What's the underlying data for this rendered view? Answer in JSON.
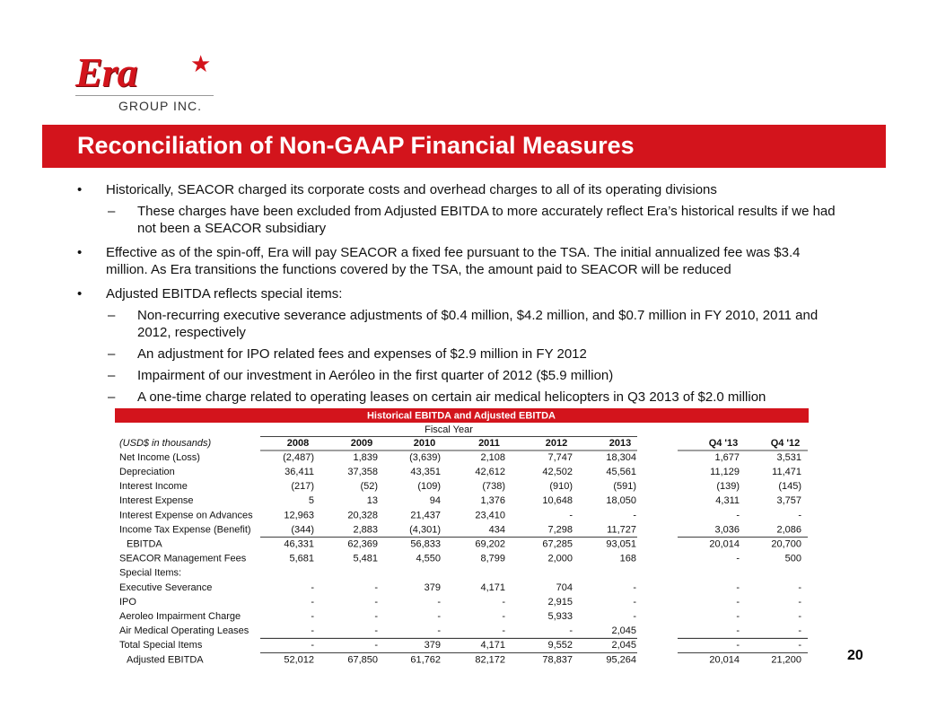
{
  "logo": {
    "name": "Era",
    "sub": "GROUP INC."
  },
  "title": "Reconciliation of Non-GAAP Financial Measures",
  "bullets": [
    {
      "text": "Historically, SEACOR charged its corporate costs and overhead charges to all of its operating divisions",
      "subs": [
        "These charges have been excluded from Adjusted EBITDA to more accurately reflect Era’s historical results if we had not been a SEACOR subsidiary"
      ]
    },
    {
      "text": "Effective as of the spin-off, Era will pay SEACOR a fixed fee pursuant to the TSA. The initial annualized fee was $3.4 million. As Era transitions the functions covered by the TSA, the amount paid to SEACOR will be reduced",
      "subs": []
    },
    {
      "text": "Adjusted EBITDA reflects special items:",
      "subs": [
        "Non-recurring executive severance adjustments of $0.4 million, $4.2 million, and $0.7 million in FY 2010, 2011 and 2012, respectively",
        "An adjustment for IPO related fees and expenses of $2.9 million in FY 2012",
        "Impairment of our investment in Aeróleo in the first quarter of 2012 ($5.9 million)",
        "A one-time charge related to operating leases on certain air medical helicopters in Q3 2013 of $2.0 million"
      ]
    }
  ],
  "table": {
    "title": "Historical EBITDA and Adjusted EBITDA",
    "group_header": "Fiscal Year",
    "unit": "(USD$ in thousands)",
    "columns": [
      "2008",
      "2009",
      "2010",
      "2011",
      "2012",
      "2013",
      "Q4 '13",
      "Q4 '12"
    ],
    "rows": [
      {
        "label": "Net Income (Loss)",
        "values": [
          "(2,487)",
          "1,839",
          "(3,639)",
          "2,108",
          "7,747",
          "18,304",
          "1,677",
          "3,531"
        ]
      },
      {
        "label": "Depreciation",
        "values": [
          "36,411",
          "37,358",
          "43,351",
          "42,612",
          "42,502",
          "45,561",
          "11,129",
          "11,471"
        ]
      },
      {
        "label": "Interest Income",
        "values": [
          "(217)",
          "(52)",
          "(109)",
          "(738)",
          "(910)",
          "(591)",
          "(139)",
          "(145)"
        ]
      },
      {
        "label": "Interest Expense",
        "values": [
          "5",
          "13",
          "94",
          "1,376",
          "10,648",
          "18,050",
          "4,311",
          "3,757"
        ]
      },
      {
        "label": "Interest Expense on Advances",
        "values": [
          "12,963",
          "20,328",
          "21,437",
          "23,410",
          "-",
          "-",
          "-",
          "-"
        ]
      },
      {
        "label": "Income Tax Expense (Benefit)",
        "values": [
          "(344)",
          "2,883",
          "(4,301)",
          "434",
          "7,298",
          "11,727",
          "3,036",
          "2,086"
        ]
      },
      {
        "label": "EBITDA",
        "values": [
          "46,331",
          "62,369",
          "56,833",
          "69,202",
          "67,285",
          "93,051",
          "20,014",
          "20,700"
        ]
      },
      {
        "label": "SEACOR Management Fees",
        "values": [
          "5,681",
          "5,481",
          "4,550",
          "8,799",
          "2,000",
          "168",
          "-",
          "500"
        ]
      },
      {
        "label": "Special Items:",
        "values": []
      },
      {
        "label": "Executive Severance",
        "values": [
          "-",
          "-",
          "379",
          "4,171",
          "704",
          "-",
          "-",
          "-"
        ]
      },
      {
        "label": "IPO",
        "values": [
          "-",
          "-",
          "-",
          "-",
          "2,915",
          "-",
          "-",
          "-"
        ]
      },
      {
        "label": "Aeroleo Impairment Charge",
        "values": [
          "-",
          "-",
          "-",
          "-",
          "5,933",
          "-",
          "-",
          "-"
        ]
      },
      {
        "label": "Air Medical Operating Leases",
        "values": [
          "-",
          "-",
          "-",
          "-",
          "-",
          "2,045",
          "-",
          "-"
        ]
      },
      {
        "label": "Total Special Items",
        "values": [
          "-",
          "-",
          "379",
          "4,171",
          "9,552",
          "2,045",
          "-",
          "-"
        ]
      },
      {
        "label": "Adjusted EBITDA",
        "values": [
          "52,012",
          "67,850",
          "61,762",
          "82,172",
          "78,837",
          "95,264",
          "20,014",
          "21,200"
        ]
      }
    ]
  },
  "page_number": "20"
}
